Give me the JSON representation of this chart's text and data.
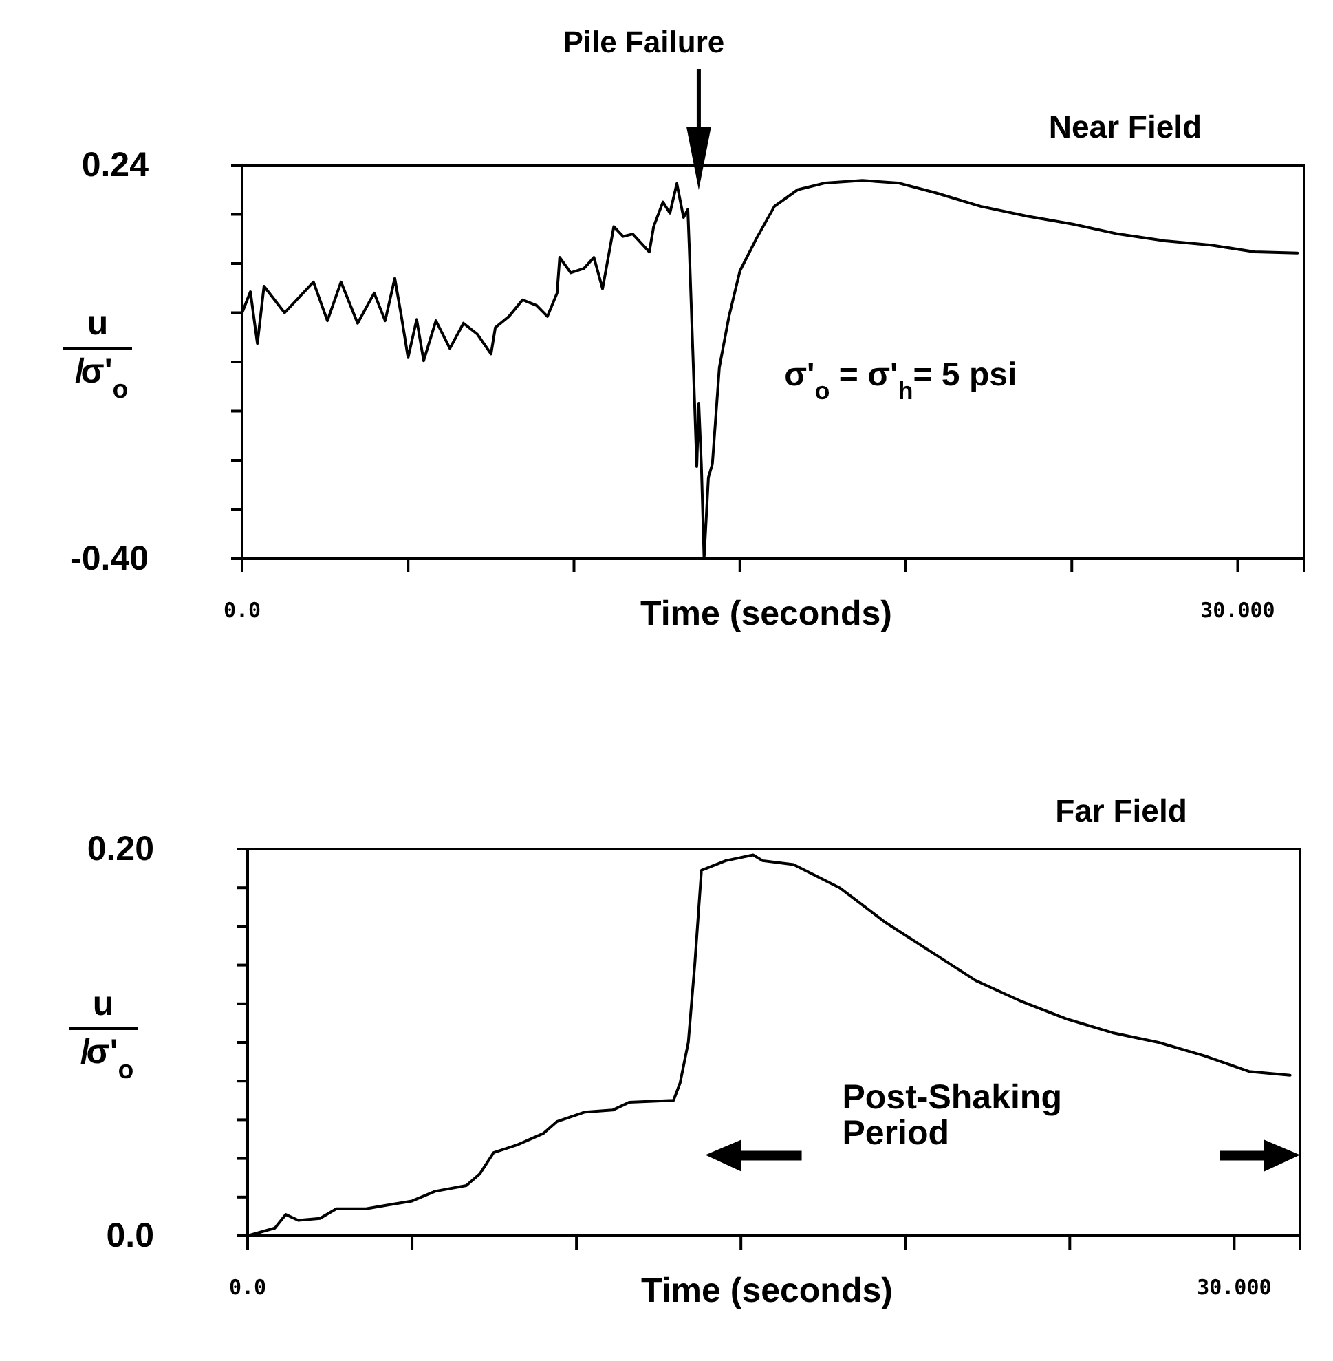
{
  "chart_data": [
    {
      "type": "line",
      "title": "Near Field",
      "xlabel": "Time  (seconds)",
      "ylabel": "u/σ'$_{o}$",
      "xlim": [
        0,
        32
      ],
      "ylim": [
        -0.4,
        0.24
      ],
      "xticks": [
        {
          "value": 0,
          "label": "0.0"
        },
        {
          "value": 5,
          "label": null
        },
        {
          "value": 10,
          "label": null
        },
        {
          "value": 15,
          "label": null
        },
        {
          "value": 20,
          "label": null
        },
        {
          "value": 25,
          "label": null
        },
        {
          "value": 30,
          "label": "30.000"
        }
      ],
      "yticks": [
        0.24,
        {
          "value": 0.16,
          "label": null
        },
        {
          "value": 0.08,
          "label": null
        },
        {
          "value": 0,
          "label": null
        },
        {
          "value": -0.08,
          "label": null
        },
        {
          "value": -0.16,
          "label": null
        },
        {
          "value": -0.24,
          "label": null
        },
        {
          "value": -0.32,
          "label": null
        },
        {
          "value": -0.4,
          "label": "-0.40"
        }
      ],
      "grid": false,
      "annotations": [
        "Pile Failure",
        "σ'$_{o}$ = σ'$_{h}$= 5 psi"
      ],
      "series": [
        {
          "color": "#000000",
          "x": [
            0,
            0.25,
            0.46,
            0.66,
            1.28,
            2.15,
            2.57,
            2.98,
            3.48,
            3.98,
            4.31,
            4.6,
            4.8,
            5.0,
            5.26,
            5.47,
            5.84,
            6.26,
            6.67,
            7.09,
            7.5,
            7.63,
            8.04,
            8.45,
            8.87,
            9.2,
            9.49,
            9.57,
            9.9,
            10.3,
            10.6,
            10.86,
            11.2,
            11.48,
            11.77,
            12.27,
            12.4,
            12.68,
            12.89,
            13.1,
            13.3,
            13.43,
            13.47,
            13.63,
            13.7,
            13.76,
            13.84,
            13.92,
            14.05,
            14.17,
            14.38,
            14.67,
            15.0,
            15.5,
            16.04,
            16.74,
            17.57,
            18.69,
            19.77,
            20.9,
            22.25,
            23.66,
            25.03,
            26.4,
            27.8,
            29.2,
            30.5,
            31.8
          ],
          "values": [
            0.0,
            0.034,
            -0.05,
            0.043,
            0.0,
            0.05,
            -0.013,
            0.05,
            -0.017,
            0.032,
            -0.013,
            0.056,
            -0.006,
            -0.073,
            -0.011,
            -0.078,
            -0.013,
            -0.058,
            -0.017,
            -0.035,
            -0.067,
            -0.024,
            -0.006,
            0.021,
            0.012,
            -0.006,
            0.032,
            0.09,
            0.065,
            0.072,
            0.09,
            0.039,
            0.14,
            0.124,
            0.128,
            0.099,
            0.14,
            0.18,
            0.162,
            0.21,
            0.155,
            0.168,
            0.112,
            -0.14,
            -0.25,
            -0.147,
            -0.25,
            -0.4,
            -0.268,
            -0.246,
            -0.089,
            -0.006,
            0.068,
            0.121,
            0.173,
            0.2,
            0.211,
            0.215,
            0.211,
            0.195,
            0.173,
            0.157,
            0.144,
            0.128,
            0.117,
            0.11,
            0.099,
            0.097
          ]
        }
      ]
    },
    {
      "type": "line",
      "title": "Far Field",
      "xlabel": "Time  (seconds)",
      "ylabel": "u/σ'$_{o}$",
      "xlim": [
        0,
        32
      ],
      "ylim": [
        0,
        0.2
      ],
      "xticks": [
        {
          "value": 0,
          "label": "0.0"
        },
        {
          "value": 5,
          "label": null
        },
        {
          "value": 10,
          "label": null
        },
        {
          "value": 15,
          "label": null
        },
        {
          "value": 20,
          "label": null
        },
        {
          "value": 25,
          "label": null
        },
        {
          "value": 30,
          "label": "30.000"
        }
      ],
      "yticks": [
        {
          "value": 0,
          "label": "0.0"
        },
        {
          "value": 0.02,
          "label": null
        },
        {
          "value": 0.04,
          "label": null
        },
        {
          "value": 0.06,
          "label": null
        },
        {
          "value": 0.08,
          "label": null
        },
        {
          "value": 0.1,
          "label": null
        },
        {
          "value": 0.12,
          "label": null
        },
        {
          "value": 0.14,
          "label": null
        },
        {
          "value": 0.16,
          "label": null
        },
        {
          "value": 0.18,
          "label": null
        },
        {
          "value": 0.2,
          "label": "0.20"
        }
      ],
      "grid": false,
      "annotations": [
        "Post-Shaking Period"
      ],
      "series": [
        {
          "color": "#000000",
          "x": [
            0,
            0.83,
            1.16,
            1.54,
            2.2,
            2.7,
            3.6,
            4.3,
            5.0,
            5.7,
            6.65,
            7.06,
            7.48,
            8.2,
            9.0,
            9.4,
            10.26,
            11.1,
            11.6,
            12.95,
            13.15,
            13.4,
            13.6,
            13.8,
            14.54,
            15.37,
            15.66,
            16.6,
            18.0,
            19.4,
            20.77,
            22.14,
            23.56,
            24.93,
            26.3,
            27.7,
            29.1,
            30.45,
            31.7
          ],
          "values": [
            0,
            0.004,
            0.011,
            0.008,
            0.009,
            0.014,
            0.014,
            0.016,
            0.018,
            0.023,
            0.026,
            0.032,
            0.043,
            0.047,
            0.053,
            0.059,
            0.064,
            0.065,
            0.069,
            0.07,
            0.079,
            0.1,
            0.141,
            0.189,
            0.194,
            0.197,
            0.194,
            0.192,
            0.18,
            0.162,
            0.147,
            0.132,
            0.121,
            0.112,
            0.105,
            0.1,
            0.093,
            0.085,
            0.083
          ]
        }
      ]
    }
  ]
}
